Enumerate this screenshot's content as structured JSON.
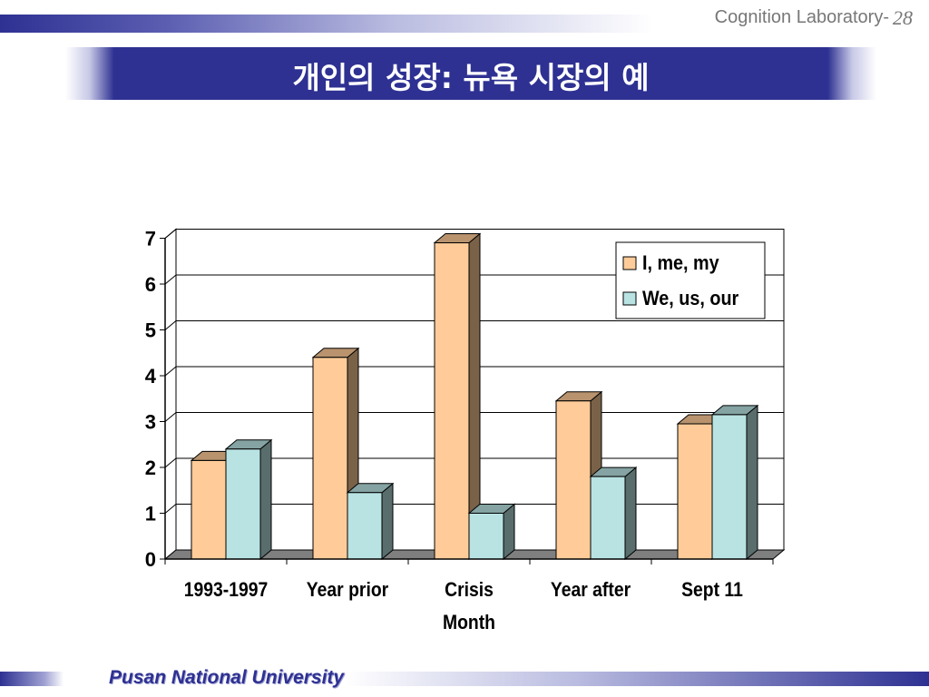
{
  "header": {
    "lab_label": "Cognition Laboratory-",
    "slide_number": "28"
  },
  "title": "개인의 성장: 뉴욕 시장의 예",
  "footer": "Pusan National University",
  "colors": {
    "brand": "#2e3192",
    "series_i": "#ffcc99",
    "series_we": "#b9e3e3"
  },
  "chart_data": {
    "type": "bar",
    "style": "3d-clustered-column",
    "categories": [
      [
        "1993-1997"
      ],
      [
        "Year prior"
      ],
      [
        "Crisis",
        "Month"
      ],
      [
        "Year after"
      ],
      [
        "Sept 11"
      ]
    ],
    "series": [
      {
        "name": "I, me, my",
        "values": [
          2.15,
          4.4,
          6.9,
          3.45,
          2.95
        ],
        "color": "#ffcc99"
      },
      {
        "name": "We, us, our",
        "values": [
          2.4,
          1.45,
          1.0,
          1.8,
          3.15
        ],
        "color": "#b9e3e3"
      }
    ],
    "ylim": [
      0,
      7
    ],
    "yticks": [
      "0",
      "1",
      "2",
      "3",
      "4",
      "5",
      "6",
      "7"
    ],
    "grid": true,
    "legend_position": "top-right",
    "title": "",
    "xlabel": "",
    "ylabel": ""
  }
}
